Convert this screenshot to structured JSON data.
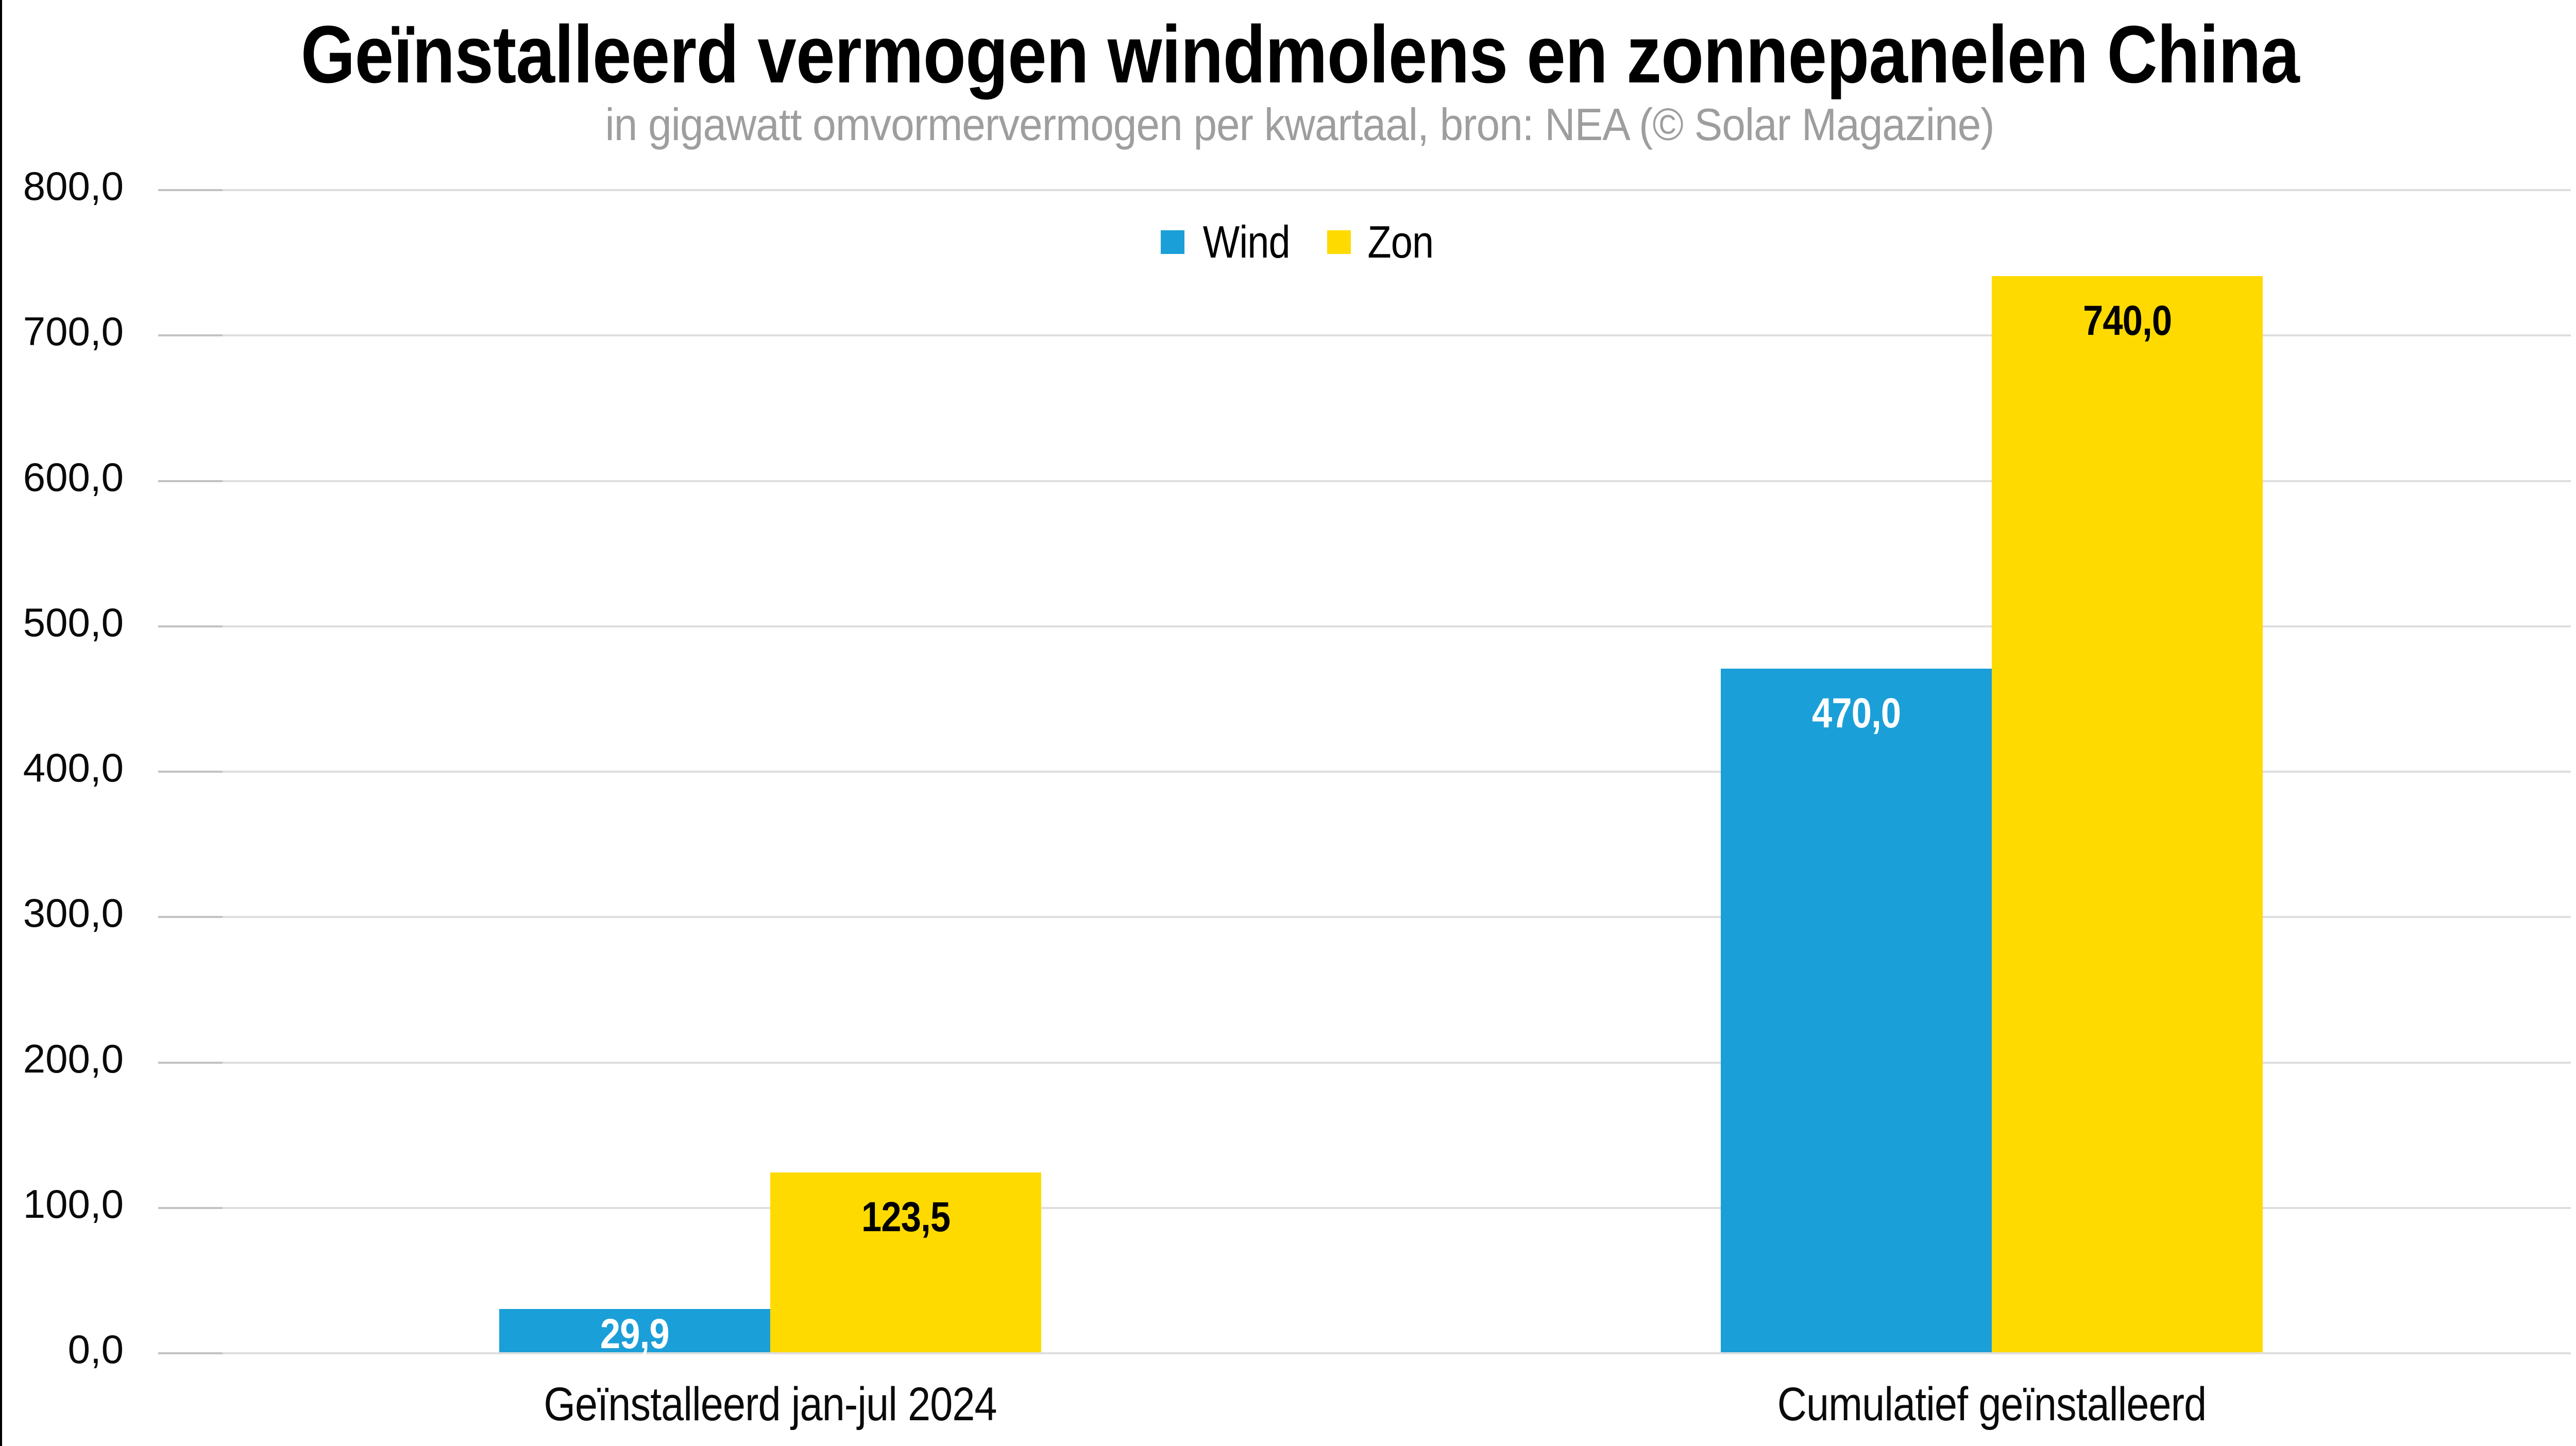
{
  "title": "Geïnstalleerd vermogen windmolens en zonnepanelen China",
  "subtitle": "in gigawatt omvormervermogen per kwartaal, bron: NEA (© Solar Magazine)",
  "colors": {
    "wind": "#1b9fd8",
    "zon": "#ffda00",
    "gridline": "#dedede",
    "tick": "#c2c2c2",
    "subtitle_text": "#9e9e9e",
    "title_text": "#000000",
    "value_label_on_wind": "#ffffff",
    "value_label_on_zon": "#000000"
  },
  "legend": [
    {
      "label": "Wind",
      "color": "#1b9fd8"
    },
    {
      "label": "Zon",
      "color": "#ffda00"
    }
  ],
  "chart_data": {
    "type": "bar",
    "title": "Geïnstalleerd vermogen windmolens en zonnepanelen China",
    "subtitle": "in gigawatt omvormervermogen per kwartaal, bron: NEA (© Solar Magazine)",
    "categories": [
      "Geïnstalleerd jan-jul 2024",
      "Cumulatief geïnstalleerd"
    ],
    "series": [
      {
        "name": "Wind",
        "color": "#1b9fd8",
        "values": [
          29.9,
          470.0
        ],
        "labels": [
          "29,9",
          "470,0"
        ],
        "label_color": "#ffffff"
      },
      {
        "name": "Zon",
        "color": "#ffda00",
        "values": [
          123.5,
          740.0
        ],
        "labels": [
          "123,5",
          "740,0"
        ],
        "label_color": "#000000"
      }
    ],
    "xlabel": "",
    "ylabel": "",
    "ylim": [
      0,
      800
    ],
    "yticks": [
      {
        "value": 0,
        "label": "0,0"
      },
      {
        "value": 100,
        "label": "100,0"
      },
      {
        "value": 200,
        "label": "200,0"
      },
      {
        "value": 300,
        "label": "300,0"
      },
      {
        "value": 400,
        "label": "400,0"
      },
      {
        "value": 500,
        "label": "500,0"
      },
      {
        "value": 600,
        "label": "600,0"
      },
      {
        "value": 700,
        "label": "700,0"
      },
      {
        "value": 800,
        "label": "800,0"
      }
    ],
    "grid": true,
    "legend_position": "top-center",
    "decimal_separator": ","
  }
}
